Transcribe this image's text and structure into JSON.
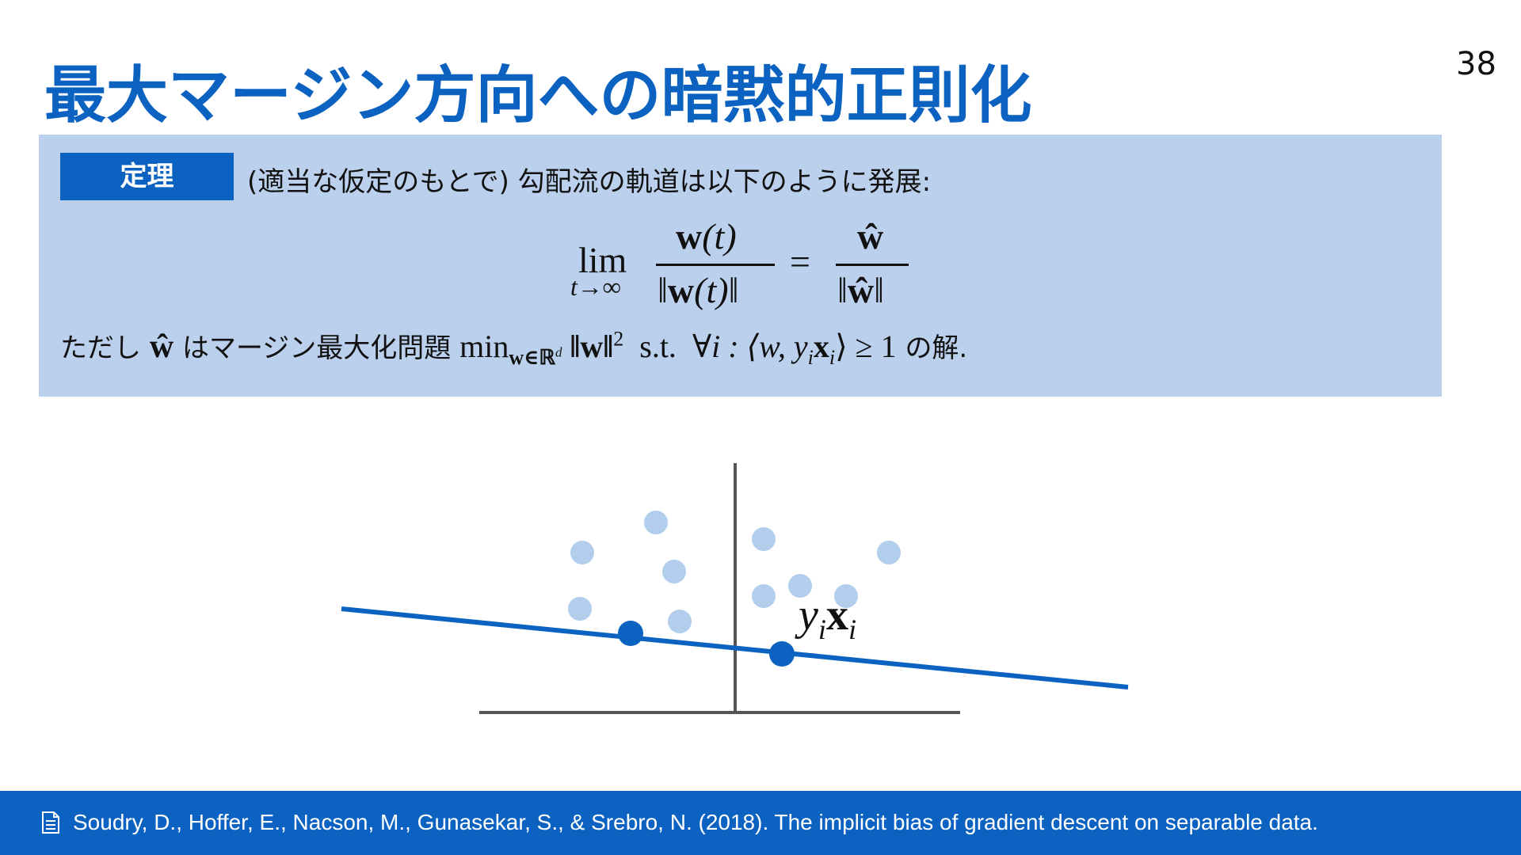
{
  "header": {
    "title": "最大マージン方向への暗黙的正則化",
    "page_number": "38"
  },
  "theorem": {
    "label": "定理",
    "intro": "(適当な仮定のもとで) 勾配流の軌道は以下のように発展:",
    "formula": {
      "lim": "lim",
      "lim_sub": "t→∞",
      "num_bold": "w",
      "num_rest": "(t)",
      "den_left": "‖",
      "den_bold": "w",
      "den_rest": "(t)‖",
      "equals": "=",
      "rhs_num": "ŵ",
      "rhs_den_left": "‖",
      "rhs_den_bold": "ŵ",
      "rhs_den_right": "‖"
    },
    "note": {
      "prefix": "ただし",
      "w_hat": "ŵ",
      "middle": "はマージン最大化問題",
      "min": "min",
      "min_sub": "w∈ℝ",
      "min_sub_sup": "d",
      "norm": "‖w‖",
      "norm_sup": "2",
      "st": "s.t.",
      "forall": "∀i : ⟨w, y",
      "y_sub": "i",
      "x": "x",
      "x_sub": "i",
      "tail": "⟩ ≥ 1",
      "suffix": "の解."
    }
  },
  "figure": {
    "point_label_y": "y",
    "point_label_y_sub": "i",
    "point_label_x": "x",
    "point_label_x_sub": "i"
  },
  "footer": {
    "citation": "Soudry, D., Hoffer, E., Nacson, M., Gunasekar, S., & Srebro, N. (2018). The implicit bias of gradient descent on separable data."
  }
}
